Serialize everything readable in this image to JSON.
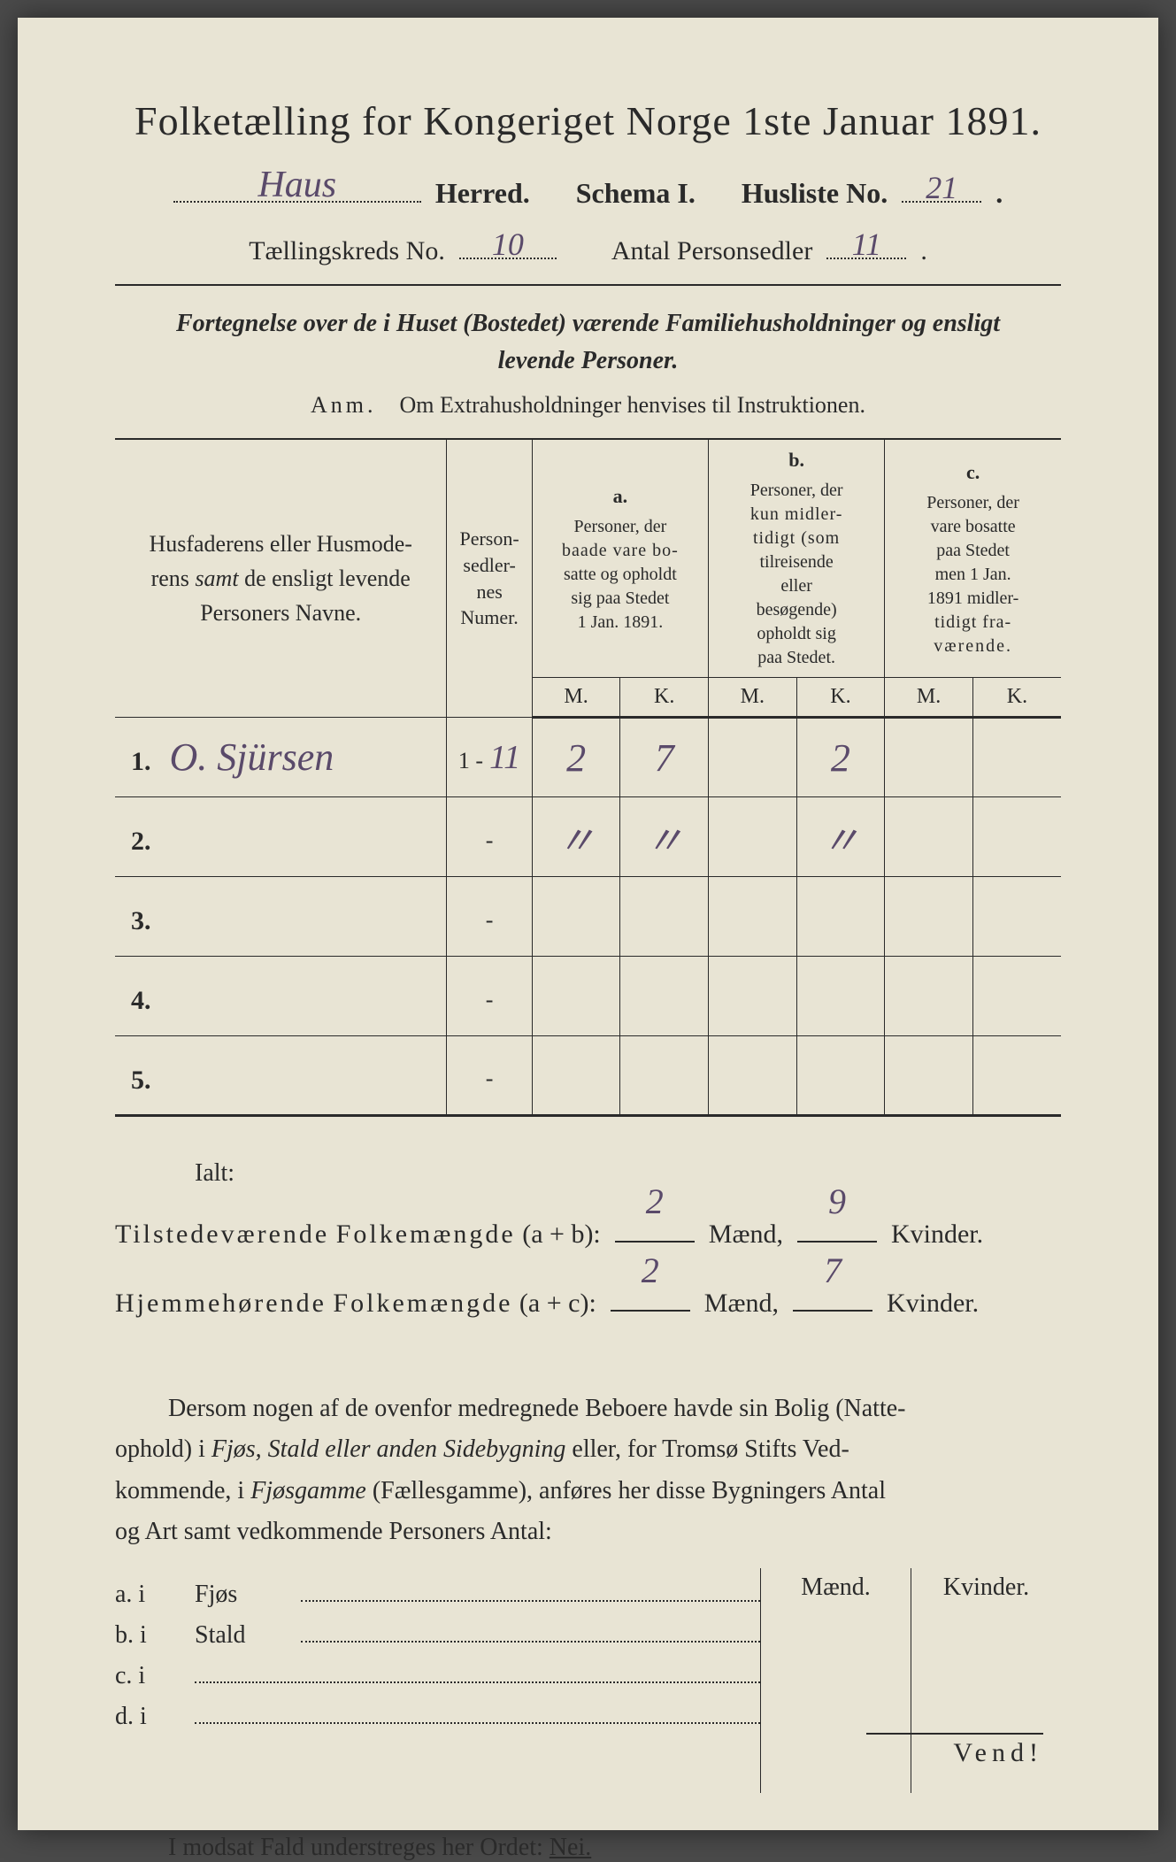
{
  "title": "Folketælling for Kongeriget Norge 1ste Januar 1891.",
  "header": {
    "herred_value": "Haus",
    "herred_label": "Herred.",
    "schema_label": "Schema I.",
    "husliste_label": "Husliste No.",
    "husliste_value": "21",
    "kreds_label": "Tællingskreds No.",
    "kreds_value": "10",
    "antal_label": "Antal Personsedler",
    "antal_value": "11"
  },
  "instruction_line1": "Fortegnelse over de i Huset (Bostedet) værende Familiehusholdninger og ensligt",
  "instruction_line2": "levende Personer.",
  "anm_label": "Anm.",
  "anm_text": "Om Extrahusholdninger henvises til Instruktionen.",
  "table": {
    "col_names_1": "Husfaderens eller Husmode-",
    "col_names_2": "rens samt de ensligt levende",
    "col_names_3": "Personers Navne.",
    "col_num_1": "Person-",
    "col_num_2": "sedler-",
    "col_num_3": "nes",
    "col_num_4": "Numer.",
    "col_a_letter": "a.",
    "col_a_1": "Personer, der",
    "col_a_2": "baade vare bo-",
    "col_a_3": "satte og opholdt",
    "col_a_4": "sig paa Stedet",
    "col_a_5": "1 Jan. 1891.",
    "col_b_letter": "b.",
    "col_b_1": "Personer, der",
    "col_b_2": "kun midler-",
    "col_b_3": "tidigt (som",
    "col_b_4": "tilreisende",
    "col_b_5": "eller",
    "col_b_6": "besøgende)",
    "col_b_7": "opholdt sig",
    "col_b_8": "paa Stedet.",
    "col_c_letter": "c.",
    "col_c_1": "Personer, der",
    "col_c_2": "vare bosatte",
    "col_c_3": "paa Stedet",
    "col_c_4": "men 1 Jan.",
    "col_c_5": "1891 midler-",
    "col_c_6": "tidigt fra-",
    "col_c_7": "værende.",
    "m": "M.",
    "k": "K.",
    "rows": [
      {
        "n": "1.",
        "name": "O.  Sjürsen",
        "num_prefix": "1 -",
        "num_hw": "11",
        "am": "2",
        "ak": "7",
        "bm": "",
        "bk": "2",
        "cm": "",
        "ck": ""
      },
      {
        "n": "2.",
        "name": "",
        "num_prefix": "-",
        "num_hw": "",
        "am": "〃",
        "ak": "〃",
        "bm": "",
        "bk": "〃",
        "cm": "",
        "ck": ""
      },
      {
        "n": "3.",
        "name": "",
        "num_prefix": "-",
        "num_hw": "",
        "am": "",
        "ak": "",
        "bm": "",
        "bk": "",
        "cm": "",
        "ck": ""
      },
      {
        "n": "4.",
        "name": "",
        "num_prefix": "-",
        "num_hw": "",
        "am": "",
        "ak": "",
        "bm": "",
        "bk": "",
        "cm": "",
        "ck": ""
      },
      {
        "n": "5.",
        "name": "",
        "num_prefix": "-",
        "num_hw": "",
        "am": "",
        "ak": "",
        "bm": "",
        "bk": "",
        "cm": "",
        "ck": ""
      }
    ]
  },
  "ialt": "Ialt:",
  "tot1_label": "Tilstedeværende Folkemængde (a + b):",
  "tot2_label": "Hjemmehørende Folkemængde (a + c):",
  "maend": "Mænd,",
  "kvinder": "Kvinder.",
  "tot1_m": "2",
  "tot1_k": "9",
  "tot2_m": "2",
  "tot2_k": "7",
  "para": {
    "p1": "Dersom nogen af de ovenfor medregnede Beboere havde sin Bolig (Natte-",
    "p2a": "ophold) i ",
    "p2_it": "Fjøs, Stald eller anden Sidebygning",
    "p2b": " eller, for Tromsø Stifts Ved-",
    "p3a": "kommende, i ",
    "p3_it": "Fjøsgamme",
    "p3b": " (Fællesgamme), anføres her disse Bygningers Antal",
    "p4": "og Art samt vedkommende Personers Antal:"
  },
  "sub": {
    "maend": "Mænd.",
    "kvinder": "Kvinder.",
    "a": "a.  i",
    "a_label": "Fjøs",
    "b": "b.  i",
    "b_label": "Stald",
    "c": "c.  i",
    "d": "d.  i"
  },
  "nei_line_pre": "I modsat Fald understreges her Ordet: ",
  "nei": "Nei.",
  "vend": "Vend!"
}
